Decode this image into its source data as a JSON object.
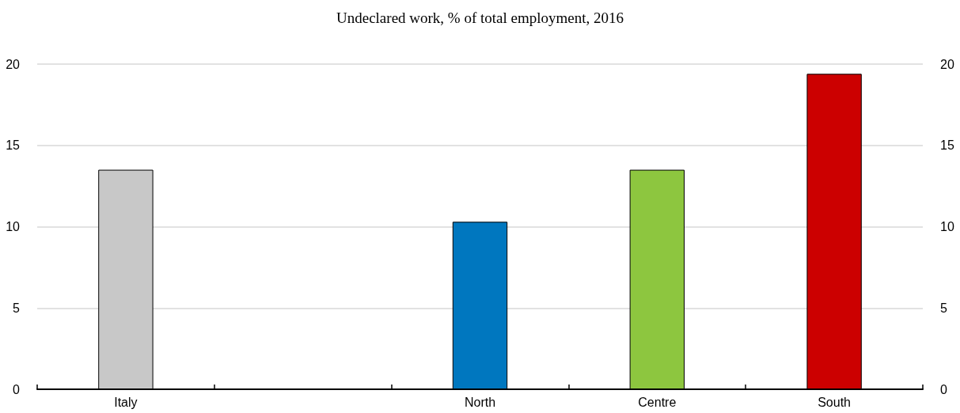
{
  "chart_data": {
    "type": "bar",
    "title": "Undeclared work, % of total employment, 2016",
    "categories": [
      "Italy",
      null,
      "North",
      "Centre",
      "South"
    ],
    "values": [
      13.5,
      null,
      10.3,
      13.5,
      19.4
    ],
    "colors": [
      "#c8c8c8",
      null,
      "#0077bf",
      "#8dc63f",
      "#cc0000"
    ],
    "ylim": [
      0,
      20
    ],
    "yticks": [
      0,
      5,
      10,
      15,
      20
    ],
    "y2lim": [
      0,
      20
    ],
    "y2ticks": [
      0,
      5,
      10,
      15,
      20
    ],
    "grid": "y"
  }
}
